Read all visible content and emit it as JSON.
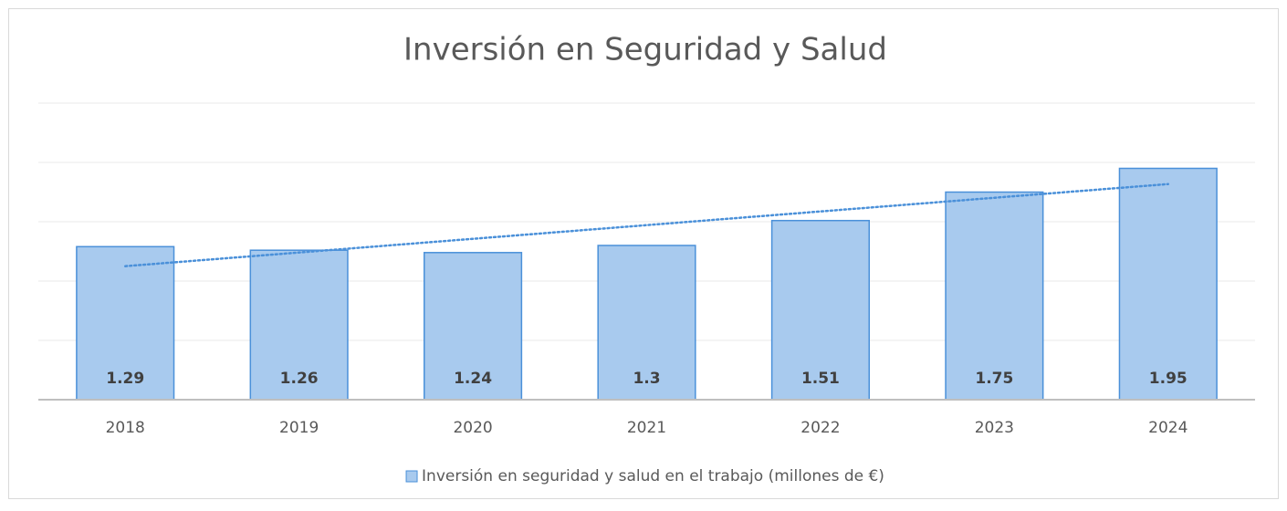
{
  "chart_data": {
    "type": "bar",
    "title": "Inversión en Seguridad y Salud",
    "categories": [
      "2018",
      "2019",
      "2020",
      "2021",
      "2022",
      "2023",
      "2024"
    ],
    "series": [
      {
        "name": "Inversión en seguridad y salud en el trabajo (millones de €)",
        "color": "#a8caee",
        "values": [
          1.29,
          1.26,
          1.24,
          1.3,
          1.51,
          1.75,
          1.95
        ]
      }
    ],
    "ylim": [
      0,
      2.5
    ],
    "yticks": [
      0,
      0.5,
      1,
      1.5,
      2,
      2.5
    ],
    "grid": true,
    "trendline": true,
    "legend": "bottom"
  }
}
